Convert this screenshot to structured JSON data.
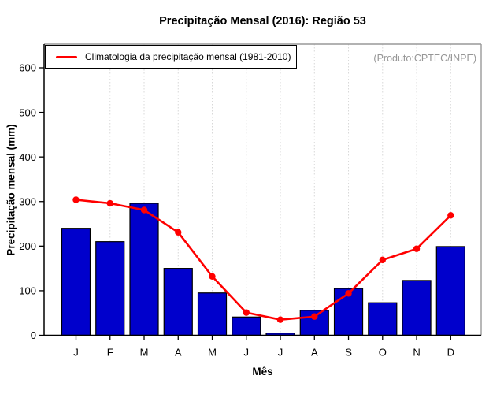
{
  "title": "Precipitação Mensal (2016): Região 53",
  "legend": {
    "label": "Climatologia da precipitação mensal (1981-2010)"
  },
  "annotation": "(Produto:CPTEC/INPE)",
  "colors": {
    "bar_fill": "#0000CC",
    "bar_border": "#000000",
    "line": "#FF0000",
    "grid": "#D8D8D8",
    "axis": "#000000",
    "box_top_right": "#999999",
    "annotation_text": "#969696"
  },
  "chart_data": {
    "type": "bar",
    "title": "Precipitação Mensal (2016): Região 53",
    "xlabel": "Mês",
    "ylabel": "Precipitação mensal (mm)",
    "categories": [
      "J",
      "F",
      "M",
      "A",
      "M",
      "J",
      "J",
      "A",
      "S",
      "O",
      "N",
      "D"
    ],
    "yticks": [
      0,
      100,
      200,
      300,
      400,
      500,
      600
    ],
    "ylim": [
      0,
      650
    ],
    "grid": "vertical-dotted",
    "legend_position": "top-left-inside",
    "series": [
      {
        "name": "Precipitação mensal (2016)",
        "type": "bar",
        "values": [
          240,
          210,
          296,
          150,
          95,
          41,
          5,
          56,
          105,
          73,
          123,
          199
        ]
      },
      {
        "name": "Climatologia da precipitação mensal (1981-2010)",
        "type": "line",
        "values": [
          304,
          296,
          281,
          231,
          132,
          51,
          35,
          42,
          94,
          169,
          194,
          269
        ]
      }
    ]
  }
}
